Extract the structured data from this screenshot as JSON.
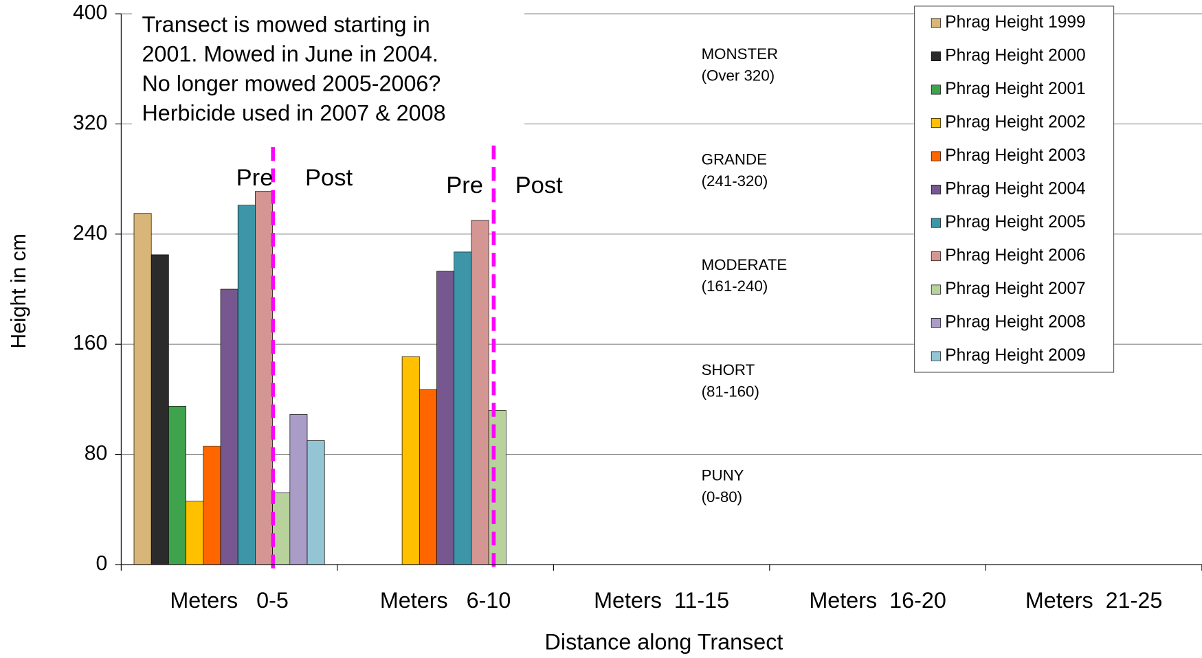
{
  "chart_data": {
    "type": "bar",
    "x_label": "Distance along Transect",
    "y_label": "Height in cm",
    "categories": [
      "Meters   0-5",
      "Meters   6-10",
      "Meters  11-15",
      "Meters  16-20",
      "Meters  21-25"
    ],
    "ylim": [
      0,
      400
    ],
    "yticks": [
      0,
      80,
      160,
      240,
      320,
      400
    ],
    "grid": true,
    "legend": "upper right",
    "series": [
      {
        "name": "Phrag Height 1999",
        "color": "#d8b679",
        "values": [
          255,
          null,
          null,
          null,
          null
        ]
      },
      {
        "name": "Phrag Height 2000",
        "color": "#2b2b2b",
        "values": [
          225,
          null,
          null,
          null,
          null
        ]
      },
      {
        "name": "Phrag Height 2001",
        "color": "#3fa34d",
        "values": [
          115,
          null,
          null,
          null,
          null
        ]
      },
      {
        "name": "Phrag Height 2002",
        "color": "#ffc000",
        "values": [
          46,
          151,
          null,
          null,
          null
        ]
      },
      {
        "name": "Phrag Height 2003",
        "color": "#ff6600",
        "values": [
          86,
          127,
          null,
          null,
          null
        ]
      },
      {
        "name": "Phrag Height 2004",
        "color": "#76578f",
        "values": [
          200,
          213,
          null,
          null,
          null
        ]
      },
      {
        "name": "Phrag Height 2005",
        "color": "#3d96a8",
        "values": [
          261,
          227,
          null,
          null,
          null
        ]
      },
      {
        "name": "Phrag Height 2006",
        "color": "#d49692",
        "values": [
          271,
          250,
          null,
          null,
          null
        ]
      },
      {
        "name": "Phrag Height 2007",
        "color": "#b7d29a",
        "values": [
          52,
          112,
          null,
          null,
          null
        ]
      },
      {
        "name": "Phrag Height 2008",
        "color": "#a99cc6",
        "values": [
          109,
          null,
          null,
          null,
          null
        ]
      },
      {
        "name": "Phrag Height 2009",
        "color": "#93c5d5",
        "values": [
          90,
          null,
          null,
          null,
          null
        ]
      }
    ],
    "note": [
      "Transect  is mowed starting in",
      "2001.  Mowed in June in 2004.",
      "No longer mowed 2005-2006?",
      "Herbicide used in 2007 & 2008"
    ],
    "zones": [
      [
        "MONSTER",
        "(Over 320)"
      ],
      [
        "GRANDE",
        "(241-320)"
      ],
      [
        "MODERATE",
        "(161-240)"
      ],
      [
        "SHORT",
        "(81-160)"
      ],
      [
        "PUNY",
        "(0-80)"
      ]
    ],
    "markers": [
      [
        "Pre",
        "Post"
      ],
      [
        "Pre",
        "Post"
      ]
    ]
  }
}
